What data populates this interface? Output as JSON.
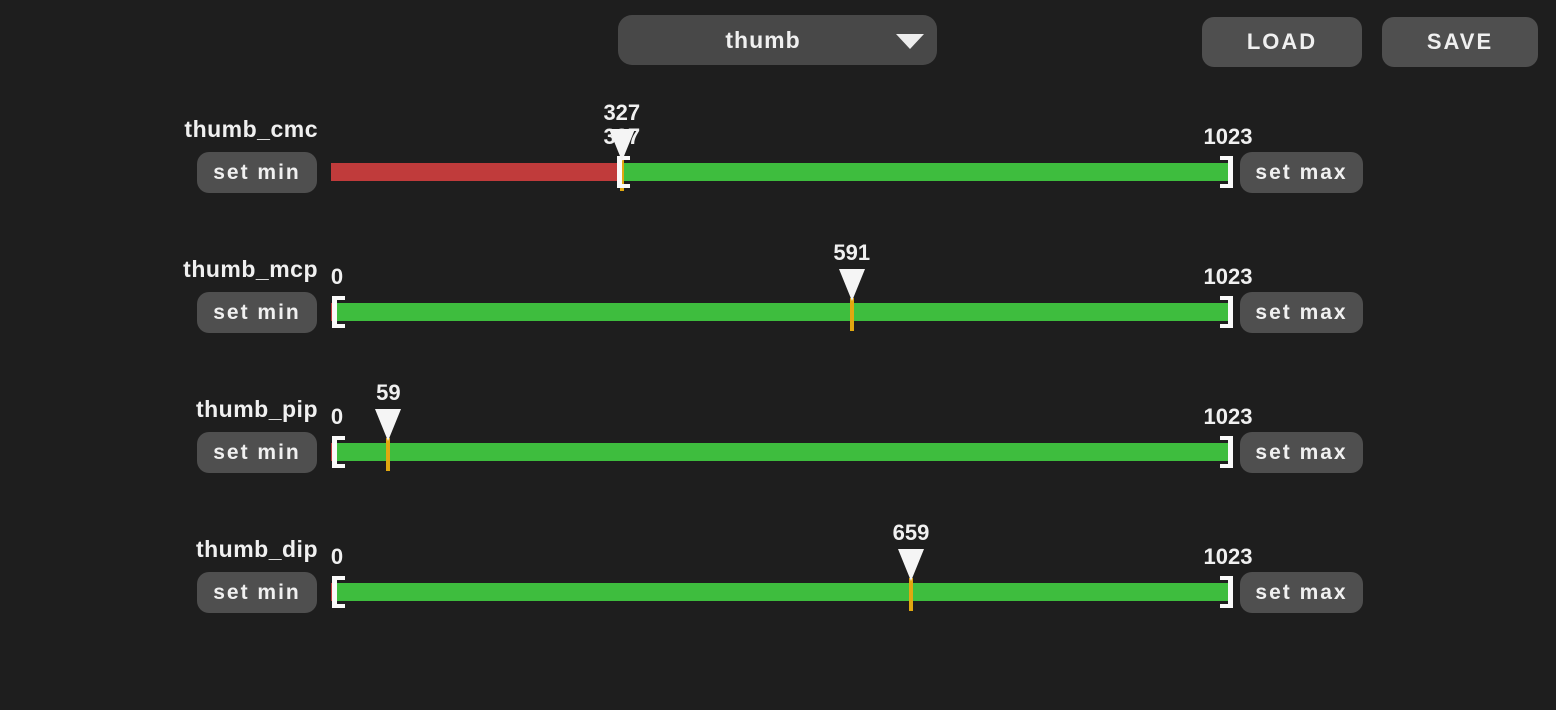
{
  "colors": {
    "background": "#1e1e1e",
    "button_bg": "#4f4f4f",
    "dropdown_bg": "#484848",
    "text": "#f0f0f0",
    "track_active": "#3ebd3e",
    "track_below_min": "#c03b3b",
    "value_tick": "#e0a810",
    "marker": "#f5f5f5",
    "bracket": "#fafafa"
  },
  "toolbar": {
    "finger_dropdown": {
      "selected": "thumb"
    },
    "load_button": "LOAD",
    "save_button": "SAVE"
  },
  "row_buttons": {
    "set_min": "set min",
    "set_max": "set max"
  },
  "range": {
    "min": 0,
    "max": 1023
  },
  "sliders": [
    {
      "name": "thumb_cmc",
      "value": 327,
      "min": 327,
      "value_label": "327",
      "min_label": "327",
      "max_label": "1023"
    },
    {
      "name": "thumb_mcp",
      "value": 591,
      "min": 0,
      "value_label": "591",
      "min_label": "0",
      "max_label": "1023"
    },
    {
      "name": "thumb_pip",
      "value": 59,
      "min": 0,
      "value_label": "59",
      "min_label": "0",
      "max_label": "1023"
    },
    {
      "name": "thumb_dip",
      "value": 659,
      "min": 0,
      "value_label": "659",
      "min_label": "0",
      "max_label": "1023"
    }
  ]
}
